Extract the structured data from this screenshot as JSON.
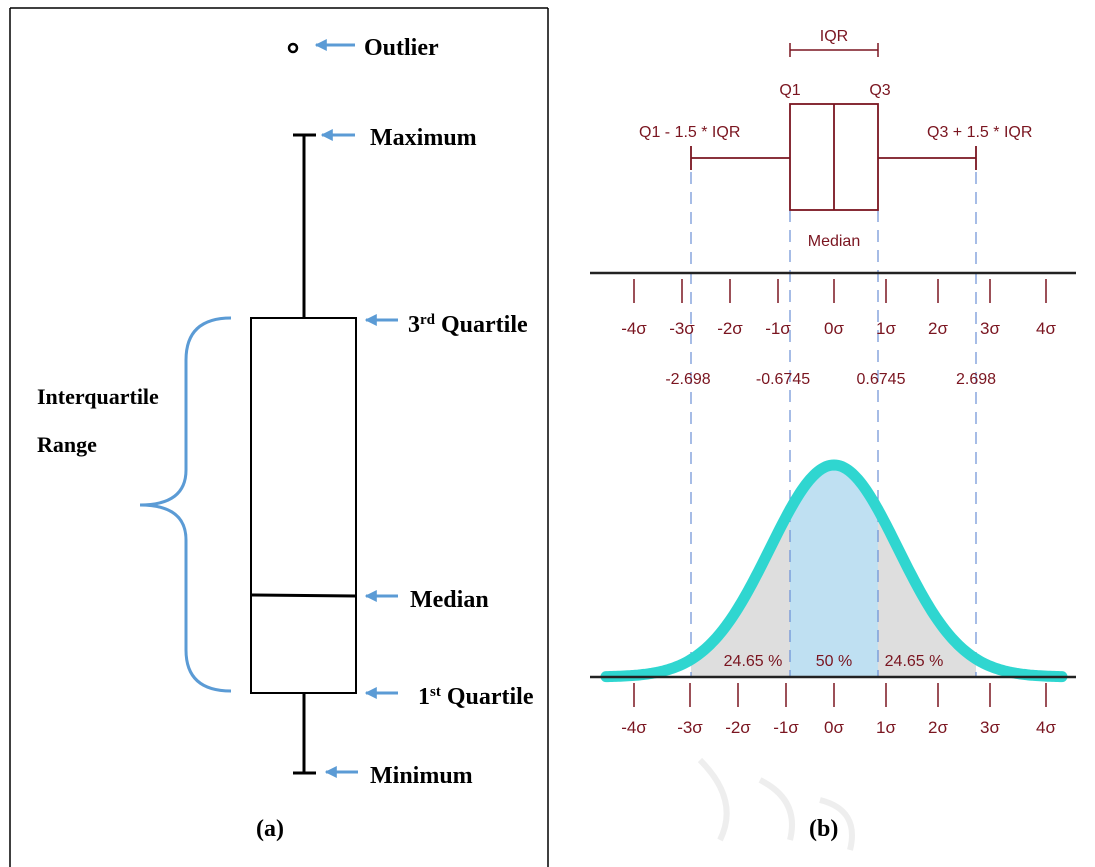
{
  "panel_a": {
    "caption": "(a)",
    "outlier_label": "Outlier",
    "maximum_label": "Maximum",
    "q3_label_main": "3",
    "q3_label_sup": "rd",
    "q3_label_rest": "Quartile",
    "median_label": "Median",
    "q1_label_main": "1",
    "q1_label_sup": "st",
    "q1_label_rest": "Quartile",
    "minimum_label": "Minimum",
    "iqr_label_line1": "Interquartile",
    "iqr_label_line2": "Range",
    "colors": {
      "arrow": "#5b9bd5",
      "brace": "#5b9bd5",
      "line": "#000000"
    }
  },
  "panel_b": {
    "caption": "(b)",
    "iqr_label": "IQR",
    "q1_label": "Q1",
    "q3_label": "Q3",
    "lower_fence_label": "Q1 - 1.5 * IQR",
    "upper_fence_label": "Q3 + 1.5 * IQR",
    "median_label": "Median",
    "sigma_ticks": [
      "-4σ",
      "-3σ",
      "-2σ",
      "-1σ",
      "0σ",
      "1σ",
      "2σ",
      "3σ",
      "4σ"
    ],
    "boundary_values": [
      "-2.698",
      "-0.6745",
      "0.6745",
      "2.698"
    ],
    "pct_left": "24.65 %",
    "pct_center": "50 %",
    "pct_right": "24.65 %",
    "colors": {
      "text": "#7a1520",
      "curve": "#2fd6d0",
      "iqr_fill": "#bfe0f2",
      "tail_fill": "#dedede",
      "guides": "#6b8fd6"
    }
  }
}
